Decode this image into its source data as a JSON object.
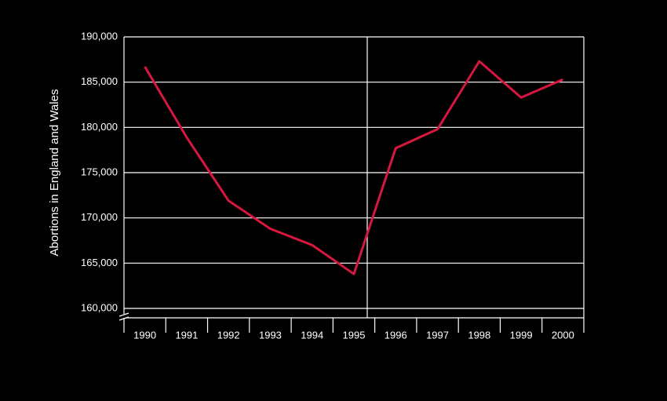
{
  "chart_data": {
    "type": "line",
    "y_label": "Abortions in England and Wales",
    "categories": [
      "1990",
      "1991",
      "1992",
      "1993",
      "1994",
      "1995",
      "1996",
      "1997",
      "1998",
      "1999",
      "2000"
    ],
    "series": [
      {
        "name": "Abortions",
        "color": "#d8173f",
        "values": [
          186700,
          178900,
          171900,
          168800,
          167000,
          163800,
          177700,
          179800,
          187300,
          183300,
          185300
        ]
      }
    ],
    "ylim": [
      160000,
      190000
    ],
    "yticks": [
      {
        "value": 160000,
        "label": "160,000"
      },
      {
        "value": 165000,
        "label": "165,000"
      },
      {
        "value": 170000,
        "label": "170,000"
      },
      {
        "value": 175000,
        "label": "175,000"
      },
      {
        "value": 180000,
        "label": "180,000"
      },
      {
        "value": 185000,
        "label": "185,000"
      },
      {
        "value": 190000,
        "label": "190,000"
      }
    ],
    "grid": true
  }
}
